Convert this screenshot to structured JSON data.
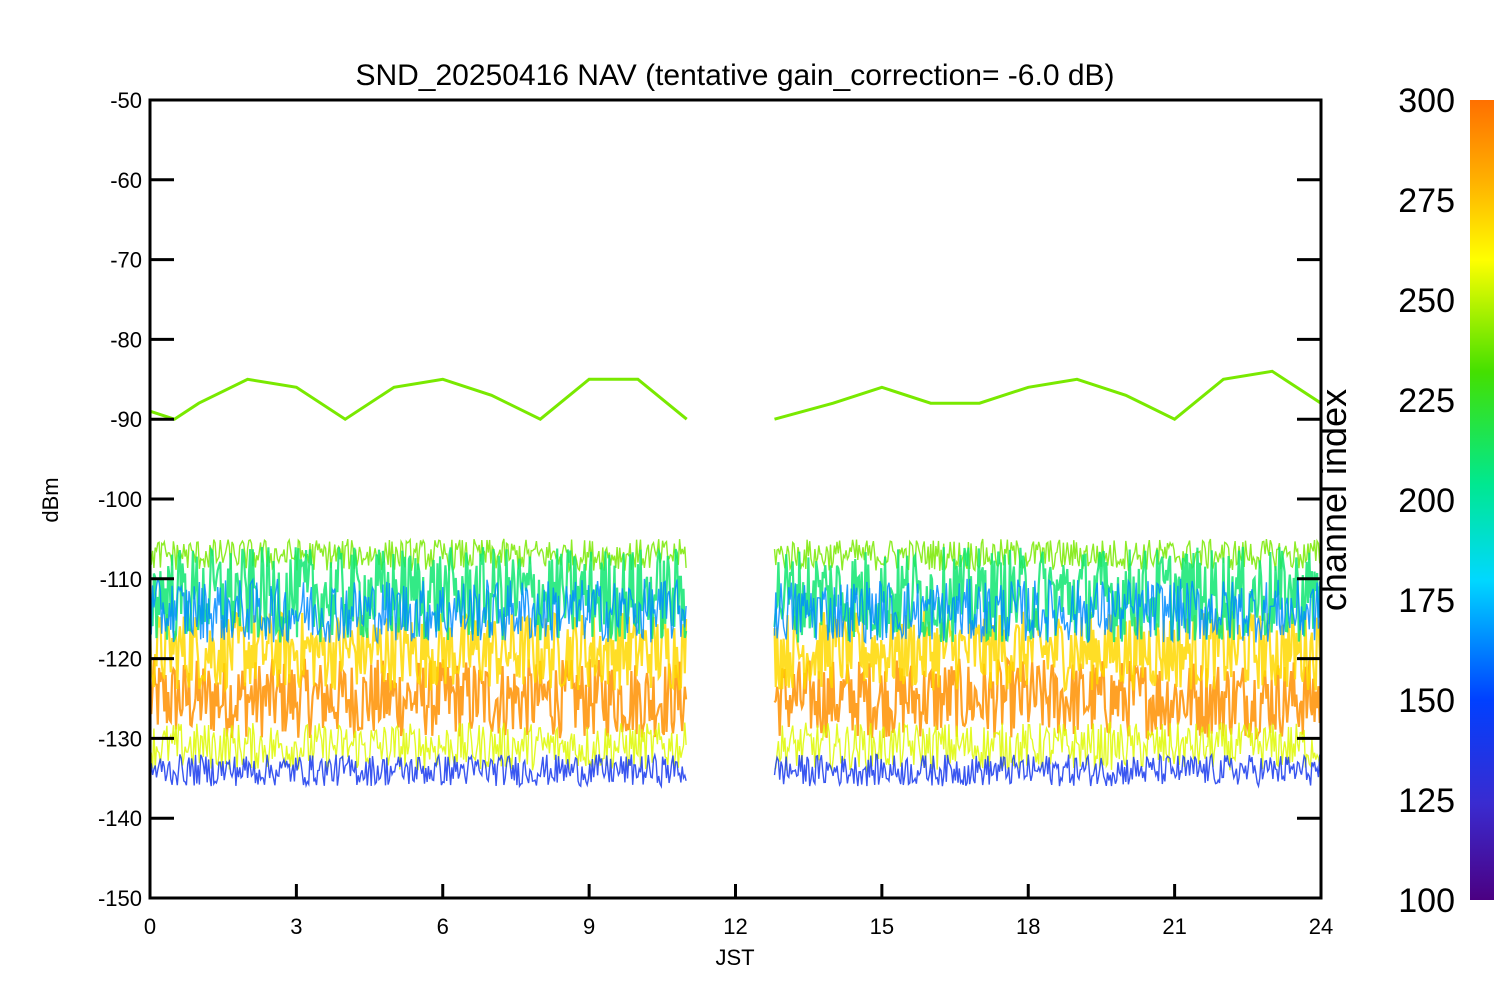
{
  "chart_data": {
    "type": "line",
    "title": "SND_20250416 NAV (tentative gain_correction= -6.0 dB)",
    "xlabel": "JST",
    "ylabel": "dBm",
    "xlim": [
      0,
      24
    ],
    "ylim": [
      -150,
      -50
    ],
    "x_ticks": [
      "0",
      "3",
      "6",
      "9",
      "12",
      "15",
      "18",
      "21",
      "24"
    ],
    "y_ticks": [
      "-50",
      "-60",
      "-70",
      "-80",
      "-90",
      "-100",
      "-110",
      "-120",
      "-130",
      "-140",
      "-150"
    ],
    "grid": false,
    "data_gap_hours": [
      11.0,
      12.8
    ],
    "bands": [
      {
        "channel": 290,
        "center_dbm": -125,
        "spread_dbm": 5
      },
      {
        "channel": 270,
        "center_dbm": -119,
        "spread_dbm": 5
      },
      {
        "channel": 255,
        "center_dbm": -131,
        "spread_dbm": 3
      },
      {
        "channel": 240,
        "center_dbm": -107,
        "spread_dbm": 2
      },
      {
        "channel": 210,
        "center_dbm": -112,
        "spread_dbm": 6
      },
      {
        "channel": 165,
        "center_dbm": -114,
        "spread_dbm": 4
      },
      {
        "channel": 140,
        "center_dbm": -134,
        "spread_dbm": 2
      }
    ],
    "trend_series": {
      "channel": 240,
      "x": [
        0,
        0.5,
        1,
        2,
        3,
        4,
        5,
        6,
        7,
        8,
        9,
        10,
        11,
        12.8,
        14,
        15,
        16,
        17,
        18,
        19,
        20,
        21,
        22,
        23,
        24
      ],
      "y": [
        -89,
        -90,
        -88,
        -85,
        -86,
        -90,
        -86,
        -85,
        -87,
        -90,
        -85,
        -85,
        -90,
        -90,
        -88,
        -86,
        -88,
        -88,
        -86,
        -85,
        -87,
        -90,
        -85,
        -84,
        -88
      ]
    },
    "colorbar": {
      "label": "channel index",
      "range": [
        100,
        300
      ],
      "ticks": [
        "300",
        "275",
        "250",
        "225",
        "200",
        "175",
        "150",
        "125",
        "100"
      ]
    }
  }
}
